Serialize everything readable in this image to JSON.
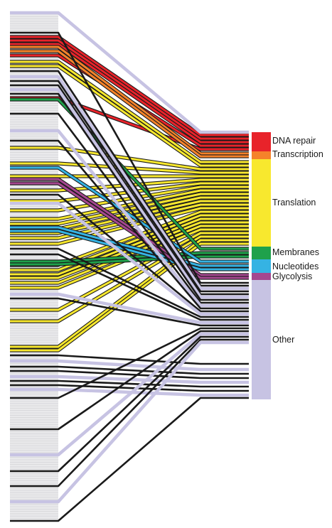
{
  "categories": [
    {
      "name": "DNA repair",
      "color": "#e8232a"
    },
    {
      "name": "Transcription",
      "color": "#f5822a"
    },
    {
      "name": "Translation",
      "color": "#f8e82e"
    },
    {
      "name": "Membranes",
      "color": "#1fa14b"
    },
    {
      "name": "Nucleotides",
      "color": "#35b3e3"
    },
    {
      "name": "Glycolysis",
      "color": "#a4478f"
    },
    {
      "name": "Other",
      "color": "#c7c3e3"
    }
  ],
  "colors": {
    "connector_outline": "#1a1a1a",
    "gene_strip": "#e9e9eb",
    "gene_strip_line": "#d0d0d4"
  }
}
